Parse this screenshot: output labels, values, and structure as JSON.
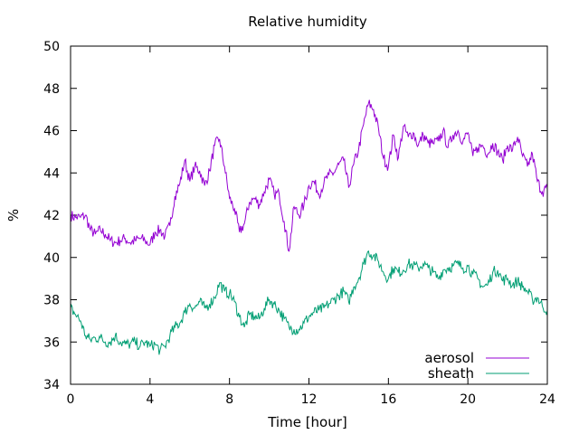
{
  "chart_data": {
    "type": "line",
    "title": "Relative humidity",
    "xlabel": "Time [hour]",
    "ylabel": "%",
    "xlim": [
      0,
      24
    ],
    "ylim": [
      34,
      50
    ],
    "xticks": [
      0,
      4,
      8,
      12,
      16,
      20,
      24
    ],
    "yticks": [
      34,
      36,
      38,
      40,
      42,
      44,
      46,
      48,
      50
    ],
    "grid": false,
    "legend_position": "bottom-right",
    "series": [
      {
        "name": "aerosol",
        "color": "#9400d3",
        "x": [
          0,
          0.25,
          0.5,
          0.75,
          1,
          1.25,
          1.5,
          1.75,
          2,
          2.25,
          2.5,
          2.75,
          3,
          3.25,
          3.5,
          3.75,
          4,
          4.25,
          4.5,
          4.75,
          5,
          5.25,
          5.5,
          5.75,
          6,
          6.25,
          6.5,
          6.75,
          7,
          7.25,
          7.5,
          7.75,
          8,
          8.25,
          8.5,
          8.75,
          9,
          9.25,
          9.5,
          9.75,
          10,
          10.25,
          10.5,
          10.75,
          11,
          11.25,
          11.5,
          11.75,
          12,
          12.25,
          12.5,
          12.75,
          13,
          13.25,
          13.5,
          13.75,
          14,
          14.25,
          14.5,
          14.75,
          15,
          15.25,
          15.5,
          15.75,
          16,
          16.25,
          16.5,
          16.75,
          17,
          17.25,
          17.5,
          17.75,
          18,
          18.25,
          18.5,
          18.75,
          19,
          19.25,
          19.5,
          19.75,
          20,
          20.25,
          20.5,
          20.75,
          21,
          21.25,
          21.5,
          21.75,
          22,
          22.25,
          22.5,
          22.75,
          23,
          23.25,
          23.5,
          23.75,
          24
        ],
        "values": [
          42.0,
          41.9,
          41.9,
          42.0,
          41.3,
          41.1,
          41.3,
          41.1,
          40.8,
          40.7,
          40.8,
          40.9,
          40.7,
          40.8,
          40.9,
          40.8,
          40.6,
          41.2,
          41.3,
          41.0,
          41.5,
          42.9,
          43.5,
          44.6,
          43.6,
          44.3,
          44.1,
          43.4,
          44.1,
          45.3,
          45.6,
          44.3,
          42.8,
          42.3,
          41.2,
          41.6,
          42.6,
          42.8,
          42.5,
          43.1,
          43.7,
          43.0,
          43.0,
          41.7,
          40.3,
          42.4,
          42.0,
          42.5,
          43.4,
          43.6,
          43.0,
          43.5,
          43.9,
          44.0,
          44.4,
          44.6,
          43.3,
          44.4,
          45.1,
          46.3,
          47.3,
          47.0,
          46.1,
          44.7,
          44.3,
          45.8,
          44.7,
          46.2,
          45.7,
          45.9,
          45.3,
          45.8,
          45.4,
          45.4,
          45.5,
          46.0,
          45.2,
          45.8,
          46.0,
          45.5,
          45.9,
          44.8,
          45.2,
          45.3,
          44.9,
          45.4,
          45.0,
          44.6,
          45.3,
          45.1,
          45.7,
          44.8,
          44.3,
          44.9,
          43.6,
          43.1,
          43.3
        ]
      },
      {
        "name": "sheath",
        "color": "#009e73",
        "x": [
          0,
          0.25,
          0.5,
          0.75,
          1,
          1.25,
          1.5,
          1.75,
          2,
          2.25,
          2.5,
          2.75,
          3,
          3.25,
          3.5,
          3.75,
          4,
          4.25,
          4.5,
          4.75,
          5,
          5.25,
          5.5,
          5.75,
          6,
          6.25,
          6.5,
          6.75,
          7,
          7.25,
          7.5,
          7.75,
          8,
          8.25,
          8.5,
          8.75,
          9,
          9.25,
          9.5,
          9.75,
          10,
          10.25,
          10.5,
          10.75,
          11,
          11.25,
          11.5,
          11.75,
          12,
          12.25,
          12.5,
          12.75,
          13,
          13.25,
          13.5,
          13.75,
          14,
          14.25,
          14.5,
          14.75,
          15,
          15.25,
          15.5,
          15.75,
          16,
          16.25,
          16.5,
          16.75,
          17,
          17.25,
          17.5,
          17.75,
          18,
          18.25,
          18.5,
          18.75,
          19,
          19.25,
          19.5,
          19.75,
          20,
          20.25,
          20.5,
          20.75,
          21,
          21.25,
          21.5,
          21.75,
          22,
          22.25,
          22.5,
          22.75,
          23,
          23.25,
          23.5,
          23.75,
          24
        ],
        "values": [
          37.6,
          37.3,
          37.0,
          36.3,
          36.1,
          36.2,
          36.2,
          36.0,
          36.0,
          36.3,
          36.0,
          35.9,
          35.9,
          36.0,
          35.8,
          36.0,
          35.8,
          35.9,
          35.6,
          35.8,
          36.3,
          36.7,
          36.9,
          37.4,
          37.8,
          37.6,
          37.9,
          37.6,
          37.8,
          38.1,
          38.8,
          38.4,
          38.3,
          37.9,
          37.2,
          36.7,
          37.3,
          37.2,
          37.1,
          37.6,
          38.0,
          37.8,
          37.5,
          37.1,
          36.7,
          36.6,
          36.6,
          36.9,
          37.2,
          37.4,
          37.5,
          37.6,
          37.8,
          38.0,
          38.2,
          38.4,
          37.9,
          38.6,
          39.0,
          39.7,
          40.3,
          40.1,
          39.8,
          39.3,
          39.0,
          39.5,
          39.3,
          39.4,
          39.7,
          39.6,
          39.5,
          39.7,
          39.5,
          39.3,
          39.0,
          39.4,
          39.5,
          39.6,
          39.7,
          39.5,
          39.6,
          39.2,
          39.0,
          38.6,
          38.7,
          39.3,
          39.4,
          38.9,
          39.0,
          38.7,
          38.9,
          38.6,
          38.4,
          38.0,
          38.1,
          37.7,
          37.5
        ]
      }
    ]
  }
}
